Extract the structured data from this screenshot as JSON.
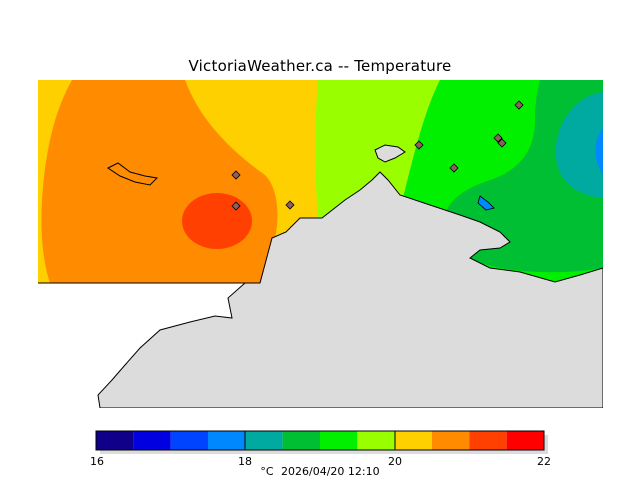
{
  "title": "VictoriaWeather.ca -- Temperature",
  "colorbar": {
    "ticks": [
      "16",
      "18",
      "20",
      "22"
    ],
    "unit": "°C",
    "timestamp": "2026/04/20 12:10",
    "colors": [
      "#100089",
      "#0000e0",
      "#0044ff",
      "#0088ff",
      "#00aaa0",
      "#00bf32",
      "#00f000",
      "#99ff00",
      "#ffd000",
      "#ff8c00",
      "#ff4000",
      "#ff0000"
    ]
  },
  "colors": {
    "land": "#dcdcdc",
    "coast": "#000000",
    "station_fill": "#8c6060"
  }
}
